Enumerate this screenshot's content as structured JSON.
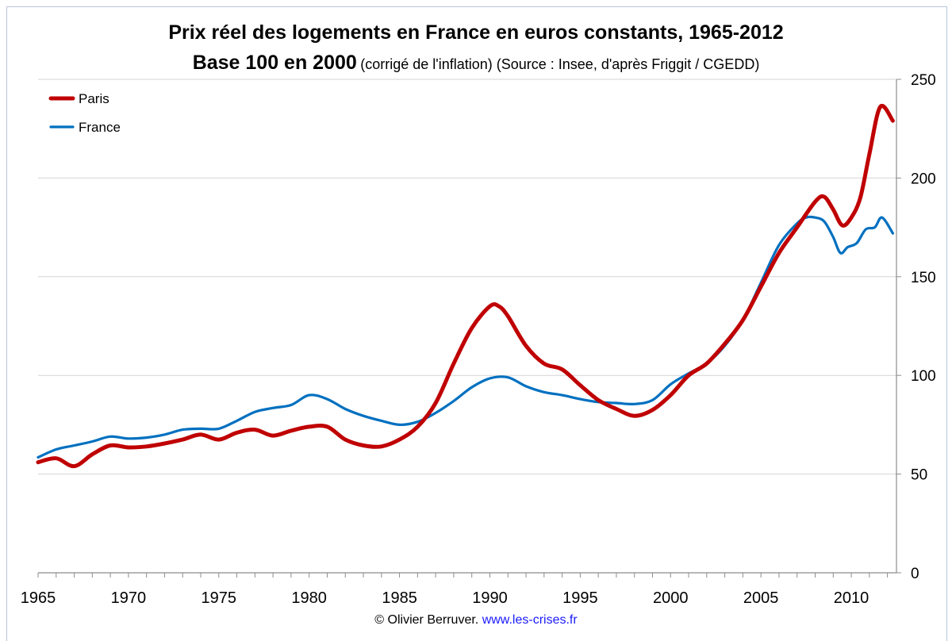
{
  "chart_data": {
    "type": "line",
    "title": "Prix réel des logements en France en euros constants, 1965-2012",
    "subtitle_main": "Base 100 en 2000",
    "subtitle_note": "(corrigé de l'inflation) (Source : Insee, d'après Friggit / CGEDD)",
    "xlim": [
      1965,
      2012.5
    ],
    "ylim": [
      0,
      250
    ],
    "x_ticks": [
      1965,
      1970,
      1975,
      1980,
      1985,
      1990,
      1995,
      2000,
      2005,
      2010
    ],
    "y_ticks": [
      0,
      50,
      100,
      150,
      200,
      250
    ],
    "y_axis_side": "right",
    "grid": true,
    "legend_position": "top-left",
    "series": [
      {
        "name": "Paris",
        "color": "#c00000",
        "points": [
          [
            1965,
            56
          ],
          [
            1966,
            58
          ],
          [
            1967,
            54
          ],
          [
            1968,
            60
          ],
          [
            1969,
            64.5
          ],
          [
            1970,
            63.5
          ],
          [
            1971,
            64
          ],
          [
            1972,
            65.5
          ],
          [
            1973,
            67.5
          ],
          [
            1974,
            70
          ],
          [
            1975,
            67.5
          ],
          [
            1976,
            71
          ],
          [
            1977,
            72.5
          ],
          [
            1978,
            69.5
          ],
          [
            1979,
            72
          ],
          [
            1980,
            74
          ],
          [
            1981,
            74
          ],
          [
            1982,
            67.5
          ],
          [
            1983,
            64.5
          ],
          [
            1984,
            64
          ],
          [
            1985,
            67.5
          ],
          [
            1986,
            74
          ],
          [
            1987,
            86
          ],
          [
            1988,
            106
          ],
          [
            1989,
            124
          ],
          [
            1990,
            135
          ],
          [
            1990.5,
            135
          ],
          [
            1991,
            130
          ],
          [
            1992,
            115
          ],
          [
            1993,
            106
          ],
          [
            1994,
            103
          ],
          [
            1995,
            95
          ],
          [
            1996,
            87.5
          ],
          [
            1997,
            83
          ],
          [
            1998,
            79.5
          ],
          [
            1999,
            82.5
          ],
          [
            2000,
            90
          ],
          [
            2001,
            100
          ],
          [
            2002,
            106
          ],
          [
            2003,
            116
          ],
          [
            2004,
            128
          ],
          [
            2005,
            145
          ],
          [
            2006,
            162
          ],
          [
            2007,
            175
          ],
          [
            2008,
            188
          ],
          [
            2008.5,
            190.5
          ],
          [
            2009,
            184
          ],
          [
            2009.5,
            176
          ],
          [
            2010,
            180
          ],
          [
            2010.5,
            190
          ],
          [
            2011,
            212
          ],
          [
            2011.6,
            236
          ],
          [
            2012.3,
            229
          ]
        ]
      },
      {
        "name": "France",
        "color": "#0070c0",
        "points": [
          [
            1965,
            58.5
          ],
          [
            1966,
            62.5
          ],
          [
            1967,
            64.5
          ],
          [
            1968,
            66.5
          ],
          [
            1969,
            69
          ],
          [
            1970,
            68
          ],
          [
            1971,
            68.5
          ],
          [
            1972,
            70
          ],
          [
            1973,
            72.5
          ],
          [
            1974,
            73
          ],
          [
            1975,
            73
          ],
          [
            1976,
            77
          ],
          [
            1977,
            81.5
          ],
          [
            1978,
            83.5
          ],
          [
            1979,
            85
          ],
          [
            1980,
            90
          ],
          [
            1981,
            88
          ],
          [
            1982,
            83
          ],
          [
            1983,
            79.5
          ],
          [
            1984,
            77
          ],
          [
            1985,
            75
          ],
          [
            1986,
            76.5
          ],
          [
            1987,
            81
          ],
          [
            1988,
            87
          ],
          [
            1989,
            94
          ],
          [
            1990,
            98.5
          ],
          [
            1991,
            99
          ],
          [
            1992,
            94.5
          ],
          [
            1993,
            91.5
          ],
          [
            1994,
            90
          ],
          [
            1995,
            88
          ],
          [
            1996,
            86.5
          ],
          [
            1997,
            86
          ],
          [
            1998,
            85.5
          ],
          [
            1999,
            87.5
          ],
          [
            2000,
            95.5
          ],
          [
            2001,
            101
          ],
          [
            2002,
            106
          ],
          [
            2003,
            115
          ],
          [
            2004,
            128
          ],
          [
            2005,
            147
          ],
          [
            2006,
            166
          ],
          [
            2007,
            177
          ],
          [
            2007.5,
            180
          ],
          [
            2008,
            180
          ],
          [
            2008.5,
            178
          ],
          [
            2009,
            170
          ],
          [
            2009.4,
            162
          ],
          [
            2009.8,
            165
          ],
          [
            2010.3,
            167
          ],
          [
            2010.8,
            174
          ],
          [
            2011.3,
            175
          ],
          [
            2011.7,
            180
          ],
          [
            2012.3,
            172
          ]
        ]
      }
    ]
  },
  "credit": {
    "author": "© Olivier Berruver.",
    "link_text": "www.les-crises.fr"
  }
}
